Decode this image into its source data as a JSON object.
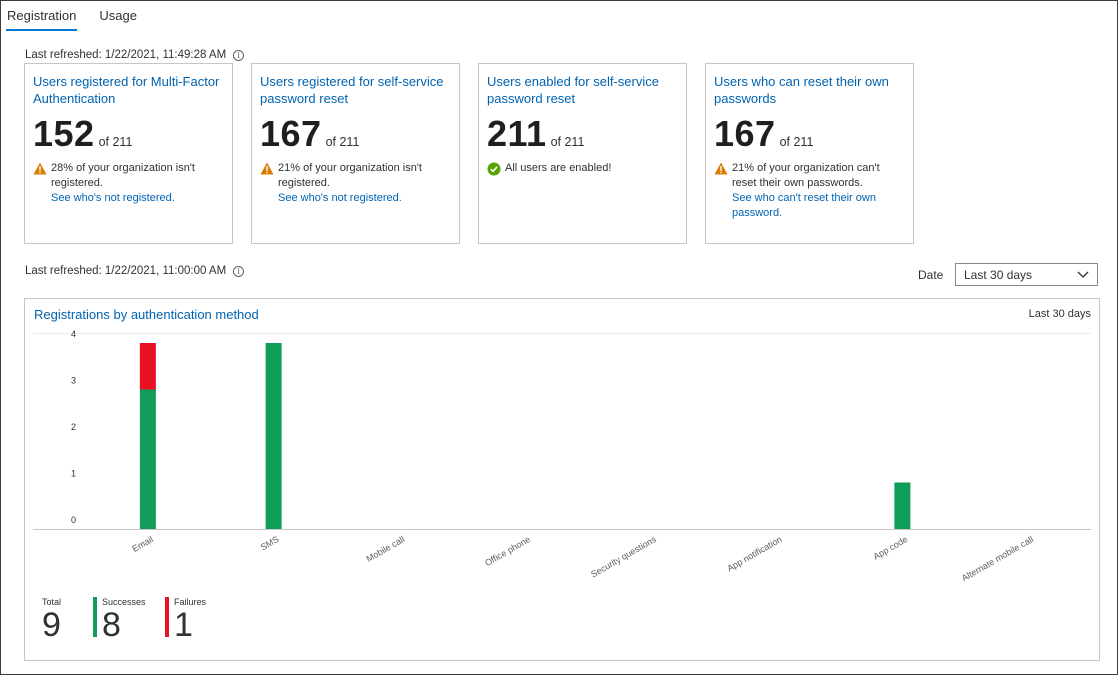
{
  "tabs": [
    {
      "label": "Registration",
      "active": true
    },
    {
      "label": "Usage",
      "active": false
    }
  ],
  "refresh_top": "Last refreshed: 1/22/2021, 11:49:28 AM",
  "refresh_bottom": "Last refreshed: 1/22/2021, 11:00:00 AM",
  "info_icon_glyph": "i",
  "cards": [
    {
      "title": "Users registered for Multi-Factor Authentication",
      "value": "152",
      "of": "of 211",
      "status": "warning",
      "message": "28% of your organization isn't registered.",
      "link": "See who's not registered."
    },
    {
      "title": "Users registered for self-service password reset",
      "value": "167",
      "of": "of 211",
      "status": "warning",
      "message": "21% of your organization isn't registered.",
      "link": "See who's not registered."
    },
    {
      "title": "Users enabled for self-service password reset",
      "value": "211",
      "of": "of 211",
      "status": "success",
      "message": "All users are enabled!",
      "link": ""
    },
    {
      "title": "Users who can reset their own passwords",
      "value": "167",
      "of": "of 211",
      "status": "warning",
      "message": "21% of your organization can't reset their own passwords.",
      "link": "See who can't reset their own password."
    }
  ],
  "date_filter": {
    "label": "Date",
    "selected": "Last 30 days"
  },
  "chart_panel": {
    "title": "Registrations by authentication method",
    "range": "Last 30 days"
  },
  "colors": {
    "success": "#0f9d58",
    "failure": "#e81123",
    "link": "#0063b1",
    "warning": "#d97b00"
  },
  "chart_data": {
    "type": "bar",
    "stacked": true,
    "categories": [
      "Email",
      "SMS",
      "Mobile call",
      "Office phone",
      "Security questions",
      "App notification",
      "App code",
      "Alternate mobile call"
    ],
    "series": [
      {
        "name": "Successes",
        "values": [
          3,
          4,
          0,
          0,
          0,
          0,
          1,
          0
        ]
      },
      {
        "name": "Failures",
        "values": [
          1,
          0,
          0,
          0,
          0,
          0,
          0,
          0
        ]
      }
    ],
    "y_ticks": [
      "0",
      "1",
      "2",
      "3",
      "4"
    ],
    "ylim": [
      0,
      4
    ],
    "grid": false
  },
  "summary": {
    "total_label": "Total",
    "total": "9",
    "successes_label": "Successes",
    "successes": "8",
    "failures_label": "Failures",
    "failures": "1"
  }
}
